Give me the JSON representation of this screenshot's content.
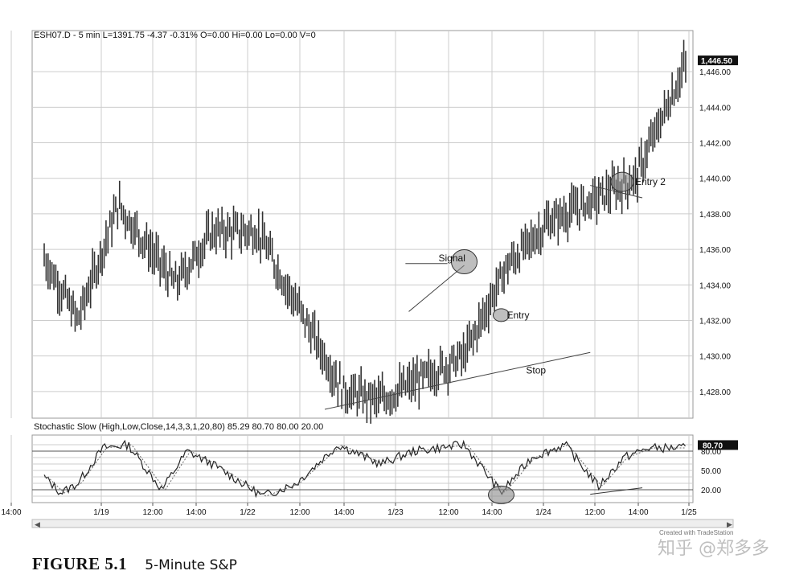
{
  "chart_data": [
    {
      "type": "bar",
      "title": "ESH07.D - 5 min  L=1391.75  -4.37  -0.31%  O=0.00  Hi=0.00  Lo=0.00  V=0",
      "ylim": [
        1426.5,
        1447.5
      ],
      "y_ticks": [
        "1,446.00",
        "1,444.00",
        "1,442.00",
        "1,440.00",
        "1,438.00",
        "1,436.00",
        "1,434.00",
        "1,432.00",
        "1,430.00",
        "1,428.00"
      ],
      "last_price": "1,446.50",
      "x": [
        0,
        0.2,
        0.44,
        0.78,
        1,
        1.27,
        1.78,
        2,
        2.5,
        2.75,
        3,
        3.52,
        3.82
      ],
      "y": [
        1435.5,
        1432,
        1438.5,
        1434,
        1437,
        1437,
        1428,
        1427.5,
        1430,
        1435,
        1437.5,
        1440,
        1446.5
      ],
      "annotations": [
        {
          "label": "Signal",
          "x": 2.5,
          "y": 1435.2
        },
        {
          "label": "Entry",
          "x": 2.72,
          "y": 1432.3
        },
        {
          "label": "Entry 2",
          "x": 3.44,
          "y": 1439.8
        },
        {
          "label": "Stop",
          "x": 2.82,
          "y": 1429.2
        }
      ],
      "grid": true
    },
    {
      "type": "line",
      "title": "Stochastic Slow (High,Low,Close,14,3,3,1,20,80)  85.29  80.70  80.00  20.00",
      "ylim": [
        0,
        100
      ],
      "y_ticks": [
        "80.00",
        "50.00",
        "20.00"
      ],
      "last_value": "80.70",
      "x_ticks": [
        "14:00",
        "1/19",
        "12:00",
        "14:00",
        "1/22",
        "12:00",
        "14:00",
        "1/23",
        "12:00",
        "14:00",
        "1/24",
        "12:00",
        "14:00",
        "1/25"
      ],
      "x": [
        0,
        0.1,
        0.2,
        0.35,
        0.5,
        0.7,
        0.85,
        1,
        1.3,
        1.5,
        1.75,
        2,
        2.2,
        2.5,
        2.72,
        2.9,
        3.1,
        3.3,
        3.45,
        3.6,
        3.82
      ],
      "y": [
        40,
        15,
        30,
        85,
        90,
        20,
        80,
        60,
        10,
        30,
        90,
        60,
        80,
        90,
        15,
        70,
        90,
        25,
        70,
        85,
        85
      ]
    }
  ],
  "caption": {
    "number": "FIGURE 5.1",
    "title": "5-Minute S&P"
  },
  "credit": "Created with TradeStation",
  "watermark": "知乎 @郑多多",
  "colors": {
    "bars": "#333333",
    "grid": "#cccccc",
    "marker": "#888888"
  }
}
